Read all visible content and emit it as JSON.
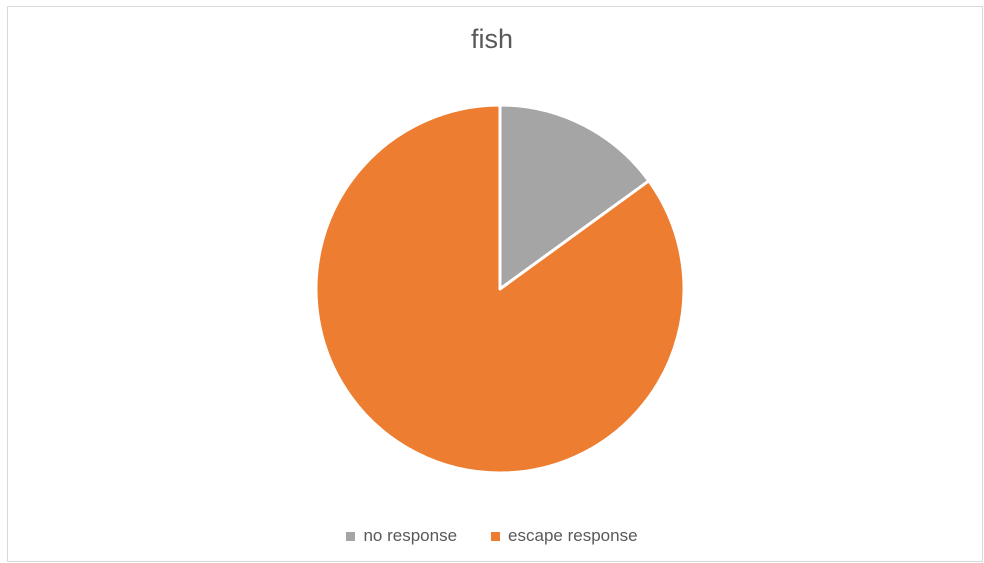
{
  "chart_data": {
    "type": "pie",
    "title": "fish",
    "categories": [
      "no response",
      "escape response"
    ],
    "values": [
      15,
      85
    ],
    "colors": [
      "#a5a5a5",
      "#ed7d31"
    ],
    "start_angle": "12 o'clock, clockwise",
    "legend_position": "bottom"
  }
}
